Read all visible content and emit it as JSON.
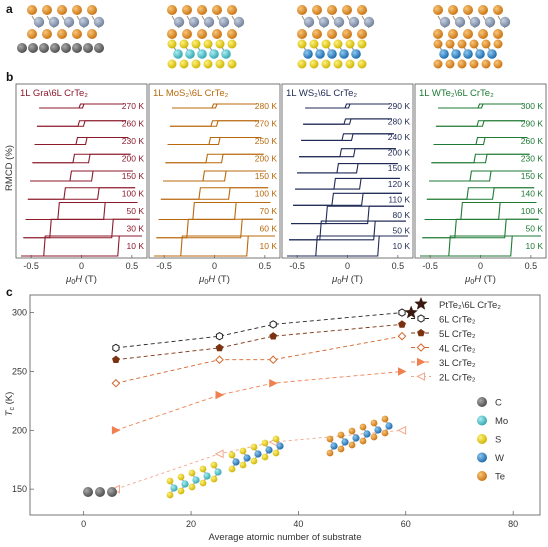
{
  "labels": {
    "a": "a",
    "b": "b",
    "c": "c"
  },
  "panel_b": {
    "y_axis_label": "RMCD (%)",
    "x_axis_label": "μ₀H (T)",
    "x_tick_labels": [
      "-0.5",
      "0",
      "0.5"
    ],
    "panels": [
      {
        "title": "1L Gra\\6L CrTe₂",
        "color": "#8b1a2b",
        "temps": [
          "270 K",
          "260 K",
          "230 K",
          "200 K",
          "150 K",
          "100 K",
          "50 K",
          "30 K",
          "10 K"
        ],
        "coercive": [
          0.01,
          0.02,
          0.04,
          0.07,
          0.1,
          0.16,
          0.22,
          0.3,
          0.36
        ]
      },
      {
        "title": "1L MoS₂\\6L CrTe₂",
        "color": "#b8680c",
        "temps": [
          "280 K",
          "270 K",
          "250 K",
          "200 K",
          "150 K",
          "100 K",
          "70 K",
          "60 K",
          "10 K"
        ],
        "coercive": [
          0.01,
          0.02,
          0.04,
          0.07,
          0.1,
          0.14,
          0.2,
          0.26,
          0.32
        ]
      },
      {
        "title": "1L WS₂\\6L CrTe₂",
        "color": "#1f2a55",
        "temps": [
          "290 K",
          "280 K",
          "240 K",
          "200 K",
          "150 K",
          "120 K",
          "110 K",
          "80 K",
          "50 K",
          "10 K"
        ],
        "coercive": [
          0.01,
          0.02,
          0.04,
          0.06,
          0.09,
          0.12,
          0.14,
          0.2,
          0.26,
          0.3
        ]
      },
      {
        "title": "1L WTe₂\\6L CrTe₂",
        "color": "#1e7a34",
        "temps": [
          "300 K",
          "290 K",
          "260 K",
          "230 K",
          "150 K",
          "140 K",
          "100 K",
          "50 K",
          "10 K"
        ],
        "coercive": [
          0.01,
          0.02,
          0.03,
          0.05,
          0.09,
          0.12,
          0.18,
          0.24,
          0.3
        ]
      }
    ]
  },
  "chart_data": {
    "type": "scatter",
    "xlabel": "Average atomic number of substrate",
    "ylabel": "Tc (K)",
    "xlim": [
      -10,
      85
    ],
    "ylim": [
      128,
      315
    ],
    "x_ticks": [
      0,
      20,
      40,
      60,
      80
    ],
    "y_ticks": [
      150,
      200,
      250,
      300
    ],
    "x": [
      6,
      25.3,
      35.3,
      59.3
    ],
    "series": [
      {
        "name": "6L CrTe₂",
        "values": [
          270,
          280,
          290,
          300
        ],
        "color": "#222222",
        "marker": "hexagon-open",
        "dash": "4,3"
      },
      {
        "name": "5L CrTe₂",
        "values": [
          260,
          270,
          280,
          290
        ],
        "color": "#7a3210",
        "marker": "pentagon-filled",
        "dash": "4,3"
      },
      {
        "name": "4L CrTe₂",
        "values": [
          240,
          260,
          260,
          280
        ],
        "color": "#d4662a",
        "marker": "diamond-open",
        "dash": "4,3"
      },
      {
        "name": "3L CrTe₂",
        "values": [
          200,
          230,
          240,
          250
        ],
        "color": "#f08050",
        "marker": "triangle-filled",
        "dash": "4,3"
      },
      {
        "name": "2L CrTe₂",
        "values": [
          150,
          180,
          190,
          200
        ],
        "color": "#f4a58a",
        "marker": "triangle-open-left",
        "dash": "3,3"
      }
    ],
    "highlight": {
      "name": "PtTe₂\\6L CrTe₂",
      "x": 61,
      "y": 300,
      "color": "#3a1a10",
      "marker": "star"
    }
  },
  "elements_legend": [
    {
      "symbol": "C",
      "color": "#6b6b6b"
    },
    {
      "symbol": "Mo",
      "color": "#5ec7cf"
    },
    {
      "symbol": "S",
      "color": "#ecd617"
    },
    {
      "symbol": "W",
      "color": "#2b8fd4"
    },
    {
      "symbol": "Te",
      "color": "#e0861a"
    }
  ]
}
